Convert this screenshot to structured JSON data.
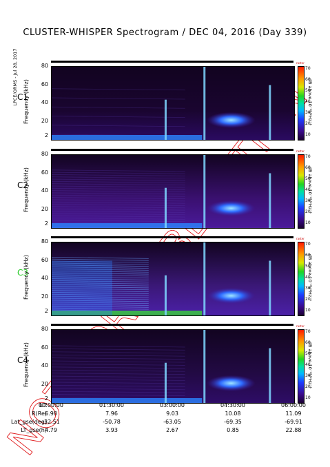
{
  "title": "CLUSTER-WHISPER Spectrogram / DEC 04, 2016 (Day 339)",
  "side_note": "LPCE/ORMS - Jul 28, 2017",
  "watermark": "NOT FOR PUBLICATION",
  "chart_data": [
    {
      "type": "heatmap",
      "spacecraft": "C1",
      "spacecraft_color": "#000000",
      "ylabel": "Frequency (kHz)",
      "yticks": [
        "80",
        "60",
        "40",
        "20",
        "2"
      ],
      "colorbar_label": "dB above 10⁻⁸V²Hz⁻¹",
      "colorbar_ticks": [
        "70",
        "60",
        "50",
        "40",
        "30",
        "20",
        "10"
      ],
      "colorbar_top": "raster"
    },
    {
      "type": "heatmap",
      "spacecraft": "C2",
      "spacecraft_color": "#000000",
      "ylabel": "Frequency (kHz)",
      "yticks": [
        "80",
        "60",
        "40",
        "20",
        "2"
      ],
      "colorbar_label": "dB above 10⁻⁸V²Hz⁻¹",
      "colorbar_ticks": [
        "70",
        "60",
        "50",
        "40",
        "30",
        "20",
        "10"
      ],
      "colorbar_top": "raster"
    },
    {
      "type": "heatmap",
      "spacecraft": "C3",
      "spacecraft_color": "#22c922",
      "ylabel": "Frequency (kHz)",
      "yticks": [
        "80",
        "60",
        "40",
        "20",
        "2"
      ],
      "colorbar_label": "dB above 10⁻⁸V²Hz⁻¹",
      "colorbar_ticks": [
        "70",
        "60",
        "50",
        "40",
        "30",
        "20",
        "10"
      ],
      "colorbar_top": "raster"
    },
    {
      "type": "heatmap",
      "spacecraft": "C4",
      "spacecraft_color": "#000000",
      "ylabel": "Frequency (kHz)",
      "yticks": [
        "80",
        "60",
        "40",
        "20",
        "2"
      ],
      "colorbar_label": "dB above 10⁻⁸V²Hz⁻¹",
      "colorbar_ticks": [
        "70",
        "60",
        "50",
        "40",
        "30",
        "20",
        "10"
      ],
      "colorbar_top": "raster"
    }
  ],
  "x_axis": {
    "ticks": [
      "00:00:00",
      "01:30:00",
      "03:00:00",
      "04:30:00",
      "06:00:00"
    ]
  },
  "ephemeris": [
    {
      "label": "UT",
      "values": [
        "00:00:00",
        "01:30:00",
        "03:00:00",
        "04:30:00",
        "06:00:00"
      ]
    },
    {
      "label": "R(Re)",
      "values": [
        "6.98",
        "7.96",
        "9.03",
        "10.08",
        "11.09"
      ]
    },
    {
      "label": "Lat_gse(deg)",
      "values": [
        "-32.51",
        "-50.78",
        "-63.05",
        "-69.35",
        "-69.91"
      ]
    },
    {
      "label": "LT_gse(h)",
      "values": [
        "4.79",
        "3.93",
        "2.67",
        "0.85",
        "22.88"
      ]
    }
  ]
}
